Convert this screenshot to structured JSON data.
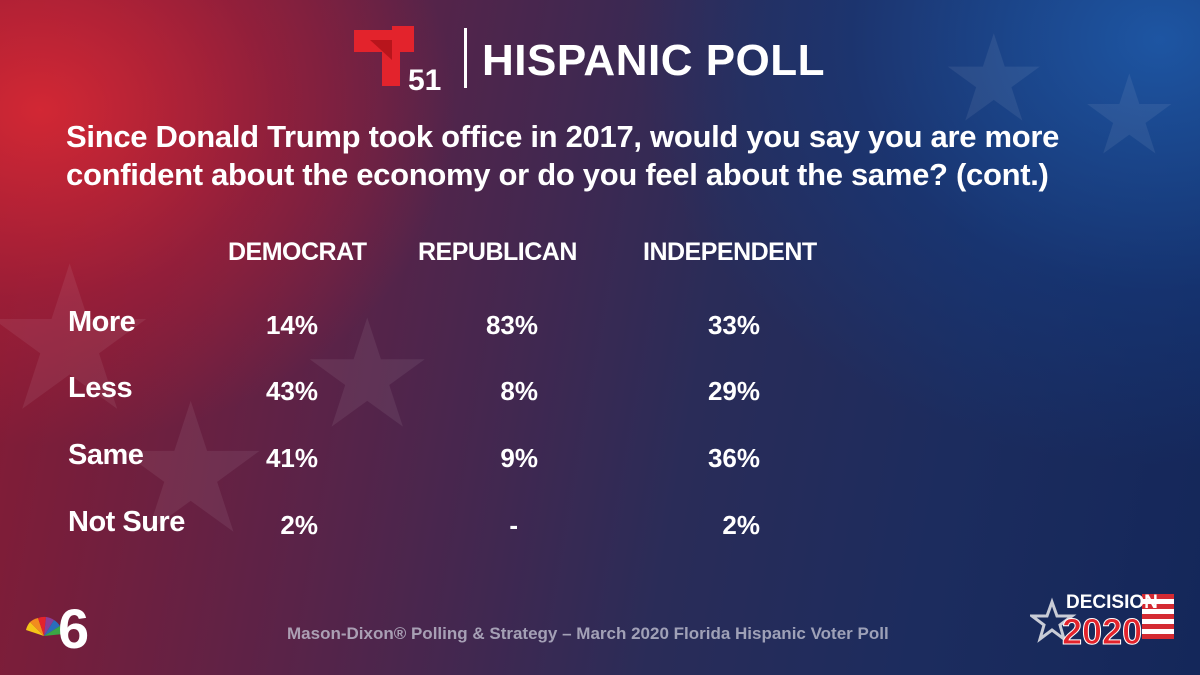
{
  "header": {
    "logo_number": "51",
    "title": "HISPANIC POLL"
  },
  "question": "Since Donald Trump took office in 2017, would you say you are more confident about the economy or do you feel about the same? (cont.)",
  "chart_data": {
    "type": "table",
    "columns": [
      "DEMOCRAT",
      "REPUBLICAN",
      "INDEPENDENT"
    ],
    "rows": [
      {
        "label": "More",
        "values": [
          "14%",
          "83%",
          "33%"
        ]
      },
      {
        "label": "Less",
        "values": [
          "43%",
          "8%",
          "29%"
        ]
      },
      {
        "label": "Same",
        "values": [
          "41%",
          "9%",
          "36%"
        ]
      },
      {
        "label": "Not Sure",
        "values": [
          "2%",
          "-",
          "2%"
        ]
      }
    ]
  },
  "footer": {
    "source": "Mason-Dixon® Polling & Strategy – March 2020 Florida Hispanic Voter Poll",
    "decision_word": "DECISION",
    "decision_year": "2020",
    "station_number": "6"
  },
  "colors": {
    "telemundo_red": "#e3232c",
    "text": "#ffffff"
  }
}
